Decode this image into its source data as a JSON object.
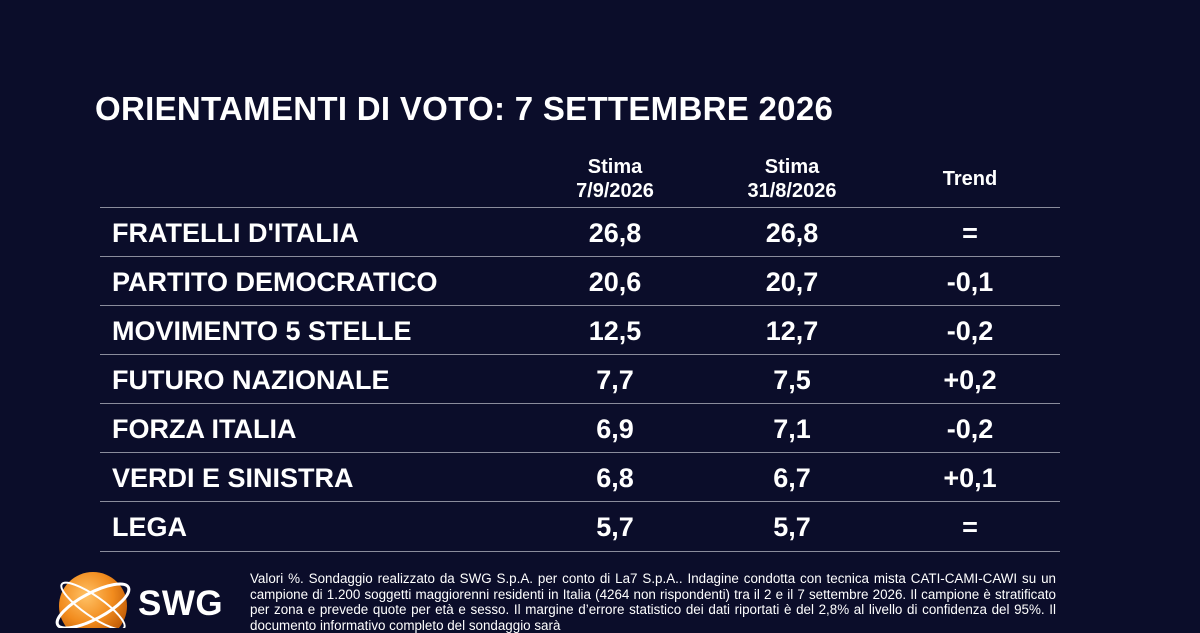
{
  "title": "ORIENTAMENTI DI VOTO: 7 SETTEMBRE 2026",
  "columns": {
    "c1_line1": "Stima",
    "c1_line2": "7/9/2026",
    "c2_line1": "Stima",
    "c2_line2": "31/8/2026",
    "trend": "Trend"
  },
  "chart_data": {
    "type": "table",
    "title": "ORIENTAMENTI DI VOTO: 7 SETTEMBRE 2026",
    "columns": [
      "Stima 7/9/2026",
      "Stima 31/8/2026",
      "Trend"
    ],
    "rows": [
      {
        "party": "FRATELLI D'ITALIA",
        "v1": "26,8",
        "v2": "26,8",
        "trend": "="
      },
      {
        "party": "PARTITO DEMOCRATICO",
        "v1": "20,6",
        "v2": "20,7",
        "trend": "-0,1"
      },
      {
        "party": "MOVIMENTO 5 STELLE",
        "v1": "12,5",
        "v2": "12,7",
        "trend": "-0,2"
      },
      {
        "party": "FUTURO NAZIONALE",
        "v1": "7,7",
        "v2": "7,5",
        "trend": "+0,2"
      },
      {
        "party": "FORZA ITALIA",
        "v1": "6,9",
        "v2": "7,1",
        "trend": "-0,2"
      },
      {
        "party": "VERDI E SINISTRA",
        "v1": "6,8",
        "v2": "6,7",
        "trend": "+0,1"
      },
      {
        "party": "LEGA",
        "v1": "5,7",
        "v2": "5,7",
        "trend": "="
      }
    ]
  },
  "logo": {
    "text": "SWG",
    "accent_color": "#f28c1e"
  },
  "note": "Valori %. Sondaggio realizzato da SWG S.p.A. per conto di La7 S.p.A.. Indagine condotta con tecnica mista CATI-CAMI-CAWI su un campione di 1.200 soggetti maggiorenni residenti in Italia (4264 non rispondenti) tra il 2 e il 7 settembre 2026. Il campione è stratificato per zona e prevede quote per età e sesso. Il margine d’errore statistico dei dati riportati è del 2,8% al livello di confidenza del 95%. Il documento informativo completo del sondaggio sarà"
}
